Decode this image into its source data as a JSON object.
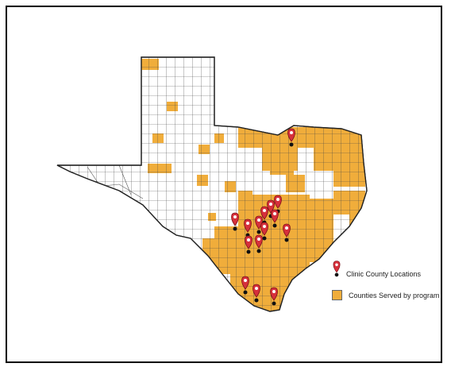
{
  "legend": {
    "clinic_label": "Clinic County Locations",
    "served_label": "Counties Served by program"
  },
  "colors": {
    "served": "#f0ad3b",
    "pin": "#d6303b",
    "outline": "#222222"
  },
  "icons": {
    "clinic": "map-pin-icon",
    "served": "square-swatch-icon"
  }
}
